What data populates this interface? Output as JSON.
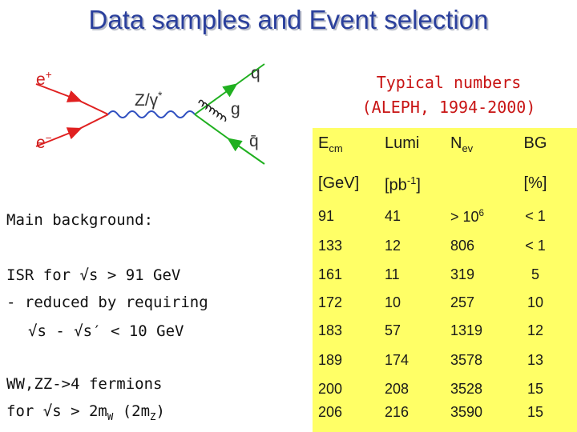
{
  "title": "Data samples and Event selection",
  "diagram": {
    "labels": [
      [
        "e",
        {
          "sup": "+"
        }
      ],
      [
        "e",
        {
          "sup": "−"
        }
      ],
      [
        "Z/γ",
        {
          "sup": "*"
        }
      ],
      [
        "q"
      ],
      [
        "g"
      ],
      [
        "q̄"
      ]
    ]
  },
  "typical": [
    "Typical numbers",
    "(ALEPH, 1994-2000)"
  ],
  "table": {
    "header": [
      [
        [
          "E",
          {
            "sub": "cm"
          }
        ],
        [
          "Lumi"
        ],
        [
          "N",
          {
            "sub": "ev"
          }
        ],
        [
          "BG"
        ]
      ],
      [
        [
          "[GeV]"
        ],
        [
          "[pb",
          {
            "sup": "-1"
          },
          "]"
        ],
        [],
        [
          "[%]"
        ]
      ]
    ],
    "rows": [
      [
        "91",
        "41",
        [
          "> 10",
          {
            "sup": "6"
          }
        ],
        "< 1"
      ],
      [
        "133",
        "12",
        "806",
        "< 1"
      ],
      [
        "161",
        "11",
        "319",
        "5"
      ],
      [
        "172",
        "10",
        "257",
        "10"
      ],
      [
        "183",
        "57",
        "1319",
        "12"
      ],
      [
        "189",
        "174",
        "3578",
        "13"
      ],
      [
        "200",
        "208",
        "3528",
        "15"
      ],
      [
        "206",
        "216",
        "3590",
        "15"
      ]
    ]
  },
  "notes": [
    [
      "Main background:"
    ],
    [
      "ISR for √s > 91 GeV"
    ],
    [
      "- reduced by requiring"
    ],
    [
      "√s - √s′ < 10 GeV"
    ],
    [
      "WW,ZZ->4 fermions"
    ],
    [
      "for √s > 2m",
      {
        "sub": "W"
      },
      " (2m",
      {
        "sub": "Z"
      },
      ")"
    ]
  ]
}
